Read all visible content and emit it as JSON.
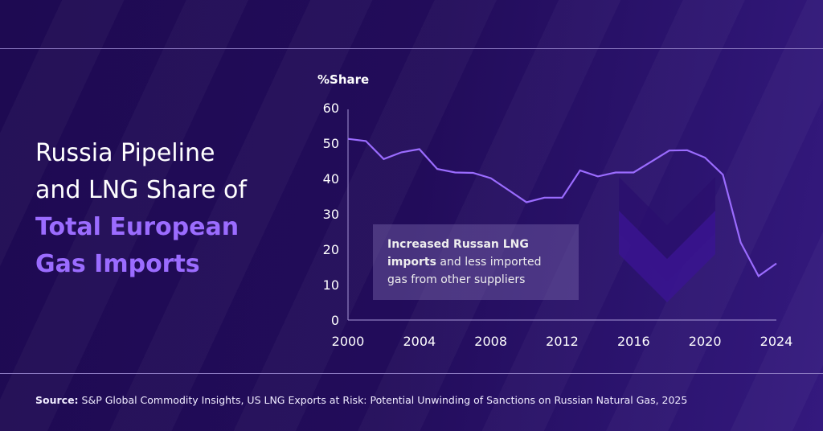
{
  "title": {
    "line1": "Russia Pipeline",
    "line2": "and LNG Share of",
    "highlight1": "Total European",
    "highlight2": "Gas Imports"
  },
  "annotation": {
    "bold": "Increased Russan LNG",
    "bold2": "imports",
    "rest": " and less imported gas from other suppliers"
  },
  "source": {
    "label": "Source:",
    "text": " S&P Global Commodity Insights, US LNG Exports at Risk: Potential Unwinding of Sanctions on Russian Natural Gas, 2025"
  },
  "colors": {
    "line": "#9b6cff",
    "accent": "#9b6cff"
  },
  "chart_data": {
    "type": "line",
    "ylabel": "%Share",
    "ylim": [
      0,
      60
    ],
    "yticks": [
      0,
      10,
      20,
      30,
      40,
      50,
      60
    ],
    "xticks": [
      2000,
      2004,
      2008,
      2012,
      2016,
      2020,
      2024
    ],
    "x": [
      2000,
      2001,
      2002,
      2003,
      2004,
      2005,
      2006,
      2007,
      2008,
      2009,
      2010,
      2011,
      2012,
      2013,
      2014,
      2015,
      2016,
      2017,
      2018,
      2019,
      2020,
      2021,
      2022,
      2023,
      2024
    ],
    "values": [
      51.2,
      50.6,
      45.5,
      47.4,
      48.3,
      42.7,
      41.7,
      41.6,
      40.1,
      36.7,
      33.3,
      34.6,
      34.6,
      42.3,
      40.6,
      41.7,
      41.7,
      44.8,
      47.9,
      48.0,
      45.9,
      41.1,
      21.9,
      12.4,
      16.0
    ],
    "grid": false
  }
}
